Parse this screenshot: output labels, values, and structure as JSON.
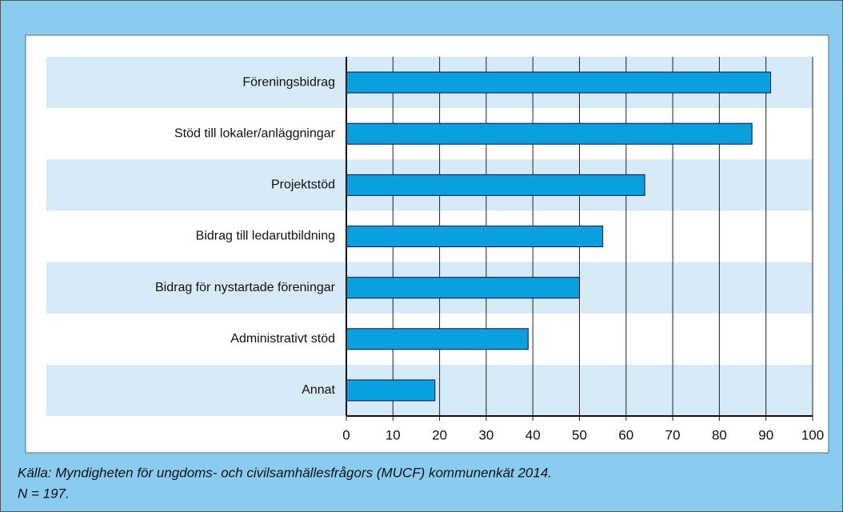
{
  "chart_data": {
    "type": "barh",
    "categories": [
      "Föreningsbidrag",
      "Stöd till lokaler/anläggningar",
      "Projektstöd",
      "Bidrag till ledarutbildning",
      "Bidrag för nystartade föreningar",
      "Administrativt stöd",
      "Annat"
    ],
    "values": [
      91,
      87,
      64,
      55,
      50,
      39,
      19
    ],
    "color": "#0aa0e0",
    "xlim": [
      0,
      100
    ],
    "xticks": [
      0,
      10,
      20,
      30,
      40,
      50,
      60,
      70,
      80,
      90,
      100
    ],
    "grid": true,
    "source": "Källa: Myndigheten för ungdoms- och civilsamhällesfrågors (MUCF) kommunenkät 2014.",
    "note": "N = 197."
  }
}
